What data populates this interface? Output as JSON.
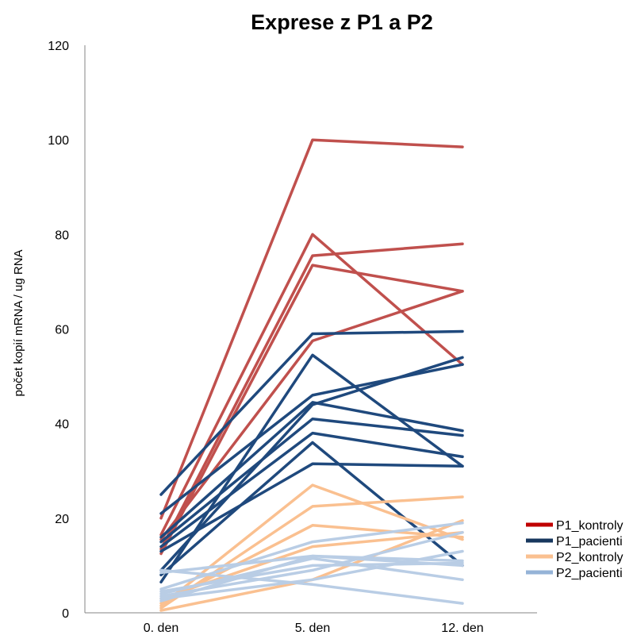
{
  "chart_data": {
    "type": "line",
    "title": "Exprese z P1 a P2",
    "ylabel": "počet kopií mRNA / ug RNA",
    "xlabel": "",
    "categories": [
      "0. den",
      "5. den",
      "12. den"
    ],
    "ylim": [
      0,
      120
    ],
    "yticks": [
      0,
      20,
      40,
      60,
      80,
      100,
      120
    ],
    "grid": false,
    "legend_position": "right",
    "groups": [
      {
        "name": "P1_kontroly",
        "color": "#c0504d",
        "legend_color": "#c00000",
        "lines": [
          [
            20,
            100,
            98.5
          ],
          [
            16.5,
            80,
            52.5
          ],
          [
            13.5,
            75.5,
            78
          ],
          [
            12.5,
            73.5,
            68
          ],
          [
            15.5,
            57.5,
            68
          ]
        ]
      },
      {
        "name": "P1_pacienti",
        "color": "#1f497d",
        "legend_color": "#17375e",
        "lines": [
          [
            25,
            59,
            59.5
          ],
          [
            21,
            46,
            52.5
          ],
          [
            16,
            44.5,
            38.5
          ],
          [
            15,
            41,
            37.5
          ],
          [
            14,
            38,
            33
          ],
          [
            13,
            31.5,
            31
          ],
          [
            6.5,
            54.5,
            31
          ],
          [
            8,
            36,
            10
          ],
          [
            9,
            44,
            54
          ]
        ]
      },
      {
        "name": "P2_kontroly",
        "color": "#fac090",
        "legend_color": "#fac090",
        "lines": [
          [
            1.5,
            27,
            15.5
          ],
          [
            1,
            22.5,
            24.5
          ],
          [
            2,
            18.5,
            16
          ],
          [
            3,
            14,
            17
          ],
          [
            0.5,
            7,
            19.5
          ]
        ]
      },
      {
        "name": "P2_pacienti",
        "color": "#b9cde5",
        "legend_color": "#95b3d7",
        "lines": [
          [
            9,
            6,
            2
          ],
          [
            8.5,
            12,
            10
          ],
          [
            5,
            15,
            19
          ],
          [
            4,
            11.5,
            7
          ],
          [
            3.5,
            9,
            17
          ],
          [
            2.5,
            12,
            11
          ],
          [
            3,
            7,
            13
          ],
          [
            4.5,
            10,
            10.5
          ]
        ]
      }
    ]
  }
}
